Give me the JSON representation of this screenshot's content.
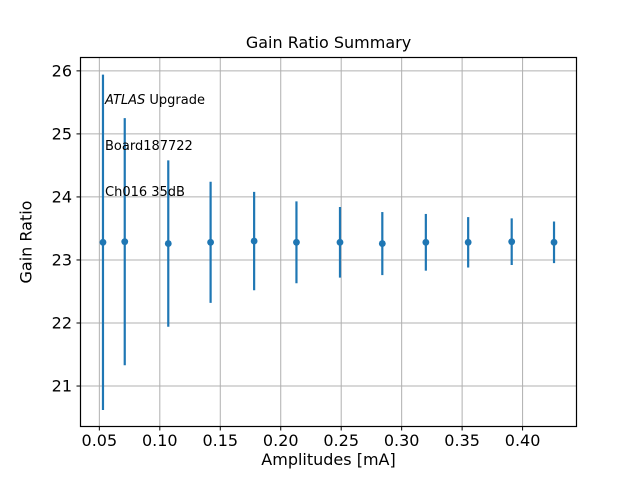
{
  "chart_data": {
    "type": "scatter",
    "subtype": "errorbar",
    "title": "Gain Ratio Summary",
    "xlabel": "Amplitudes [mA]",
    "ylabel": "Gain Ratio",
    "annotation": {
      "line1_italic": "ATLAS",
      "line1_rest": " Upgrade",
      "line2": "Board187722",
      "line3": "Ch016 35dB"
    },
    "x": [
      0.053,
      0.071,
      0.107,
      0.142,
      0.178,
      0.213,
      0.249,
      0.284,
      0.32,
      0.355,
      0.391,
      0.426
    ],
    "y": [
      23.28,
      23.29,
      23.26,
      23.28,
      23.3,
      23.28,
      23.28,
      23.26,
      23.28,
      23.28,
      23.29,
      23.28
    ],
    "yerr": [
      2.66,
      1.96,
      1.32,
      0.96,
      0.78,
      0.65,
      0.56,
      0.5,
      0.45,
      0.4,
      0.37,
      0.33
    ],
    "xlim": [
      0.034,
      0.445
    ],
    "ylim": [
      20.35,
      26.22
    ],
    "xtick_values": [
      0.05,
      0.1,
      0.15,
      0.2,
      0.25,
      0.3,
      0.35,
      0.4
    ],
    "xtick_labels": [
      "0.05",
      "0.10",
      "0.15",
      "0.20",
      "0.25",
      "0.30",
      "0.35",
      "0.40"
    ],
    "ytick_values": [
      21,
      22,
      23,
      24,
      25,
      26
    ],
    "ytick_labels": [
      "21",
      "22",
      "23",
      "24",
      "25",
      "26"
    ],
    "grid": true,
    "legend": false,
    "marker": "circle",
    "colors": {
      "series": "#1f77b4",
      "grid": "#b0b0b0",
      "spine": "#000000",
      "text": "#000000",
      "background": "#ffffff"
    }
  }
}
